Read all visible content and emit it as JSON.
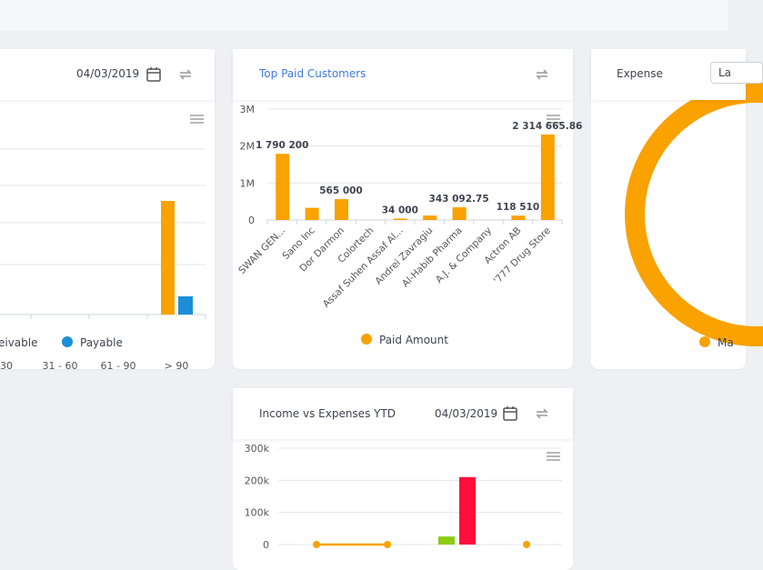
{
  "colors": {
    "orange": "#f9a200",
    "blue": "#1b8fd6",
    "red": "#ff0f3c",
    "green": "#8ccb11",
    "grid": "#e6e6e6"
  },
  "aging_card": {
    "date": "04/03/2019",
    "calendar_icon": "calendar-icon",
    "refresh_icon": "refresh-icon",
    "menu_icon": "hamburger-menu-icon",
    "x_ticks": [
      "30",
      "31 - 60",
      "61 - 90",
      "> 90"
    ],
    "legend": [
      {
        "label": "eceivable",
        "color": "#f9a200"
      },
      {
        "label": "Payable",
        "color": "#1b8fd6"
      }
    ]
  },
  "customers_card": {
    "title": "Top Paid Customers",
    "refresh_icon": "refresh-icon",
    "menu_icon": "hamburger-menu-icon",
    "legend": "Paid Amount"
  },
  "expense_card": {
    "title": "Expense",
    "select_value": "La",
    "legend": "Ma"
  },
  "income_card": {
    "title": "Income vs Expenses YTD",
    "date": "04/03/2019",
    "calendar_icon": "calendar-icon",
    "refresh_icon": "refresh-icon",
    "menu_icon": "hamburger-menu-icon",
    "y_ticks": [
      "300k",
      "200k",
      "100k",
      "0"
    ]
  },
  "chart_data": [
    {
      "type": "bar",
      "categories": [
        "30",
        "31 - 60",
        "61 - 90",
        "> 90"
      ],
      "series": [
        {
          "name": "eceivable",
          "values": [
            null,
            null,
            null,
            null
          ]
        },
        {
          "name": "Payable",
          "values": [
            null,
            null,
            null,
            null
          ]
        }
      ]
    },
    {
      "type": "bar",
      "title": "Top Paid Customers",
      "categories": [
        "SWAN GEN...",
        "Sano Inc",
        "Dor Darmon",
        "Colortech",
        "Assaf Suhen Assaf Al...",
        "Andrei Zavragiu",
        "Al-Habib Pharma",
        "A.J. & Company",
        "Actron AB",
        "'777 Drug Store"
      ],
      "series": [
        {
          "name": "Paid Amount",
          "values": [
            1790200,
            330000,
            565000,
            0,
            34000,
            120000,
            343092.75,
            0,
            118510,
            2314665.86
          ]
        }
      ],
      "data_labels": [
        "1 790 200",
        "",
        "565 000",
        "",
        "34 000",
        "",
        "343 092.75",
        "",
        "118 510",
        "2 314 665.86"
      ],
      "y_ticks": [
        "3M",
        "2M",
        "1M",
        "0"
      ],
      "ylim": [
        0,
        3000000
      ]
    },
    {
      "type": "pie",
      "title": "Expense",
      "series": [
        {
          "name": "Ma",
          "values": [
            1
          ]
        }
      ]
    },
    {
      "type": "bar",
      "title": "Income vs Expenses YTD",
      "y_ticks": [
        "300k",
        "200k",
        "100k",
        "0"
      ],
      "ylim": [
        0,
        300000
      ],
      "bars": [
        {
          "color": "#8ccb11",
          "value": 25000
        },
        {
          "color": "#ff0f3c",
          "value": 210000
        }
      ],
      "line": {
        "color": "#f9a200",
        "values": [
          0,
          0
        ]
      },
      "point": {
        "color": "#f9a200",
        "value": 0
      }
    }
  ]
}
